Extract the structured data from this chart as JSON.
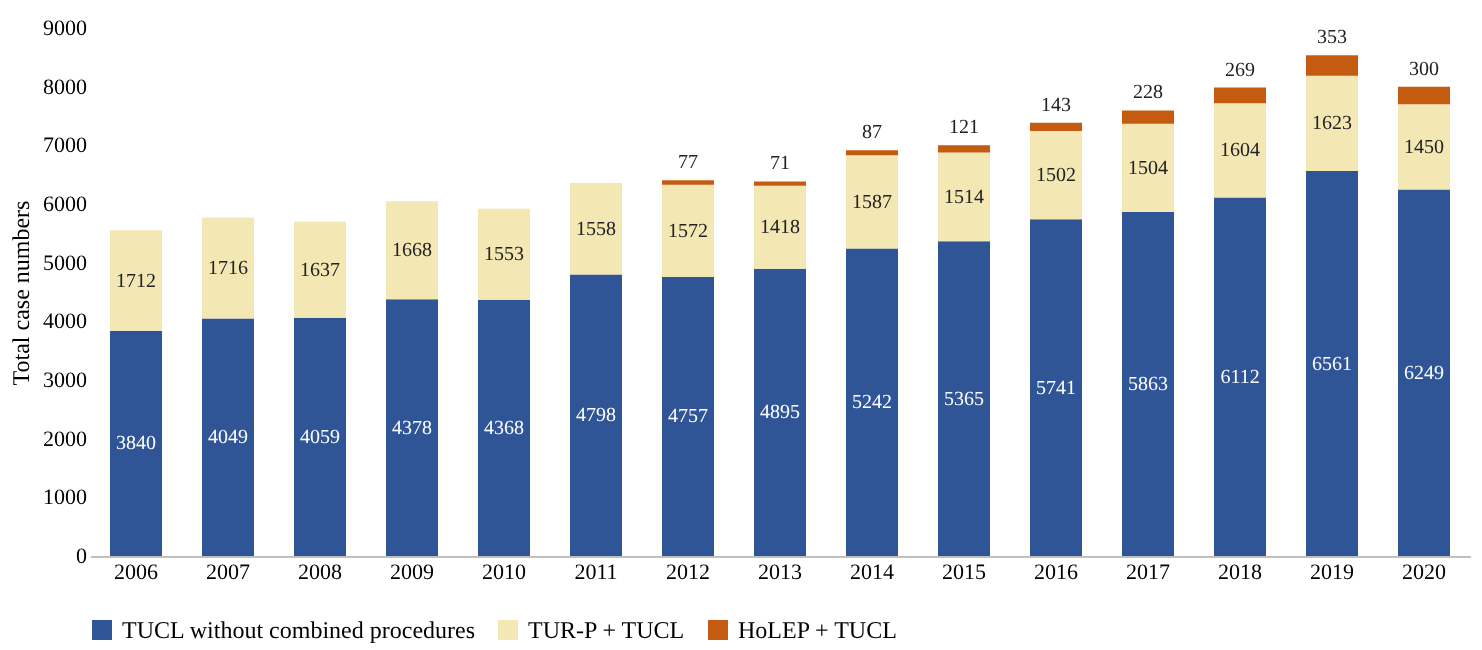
{
  "chart_data": {
    "type": "bar",
    "stacked": true,
    "ylabel": "Total case numbers",
    "categories": [
      "2006",
      "2007",
      "2008",
      "2009",
      "2010",
      "2011",
      "2012",
      "2013",
      "2014",
      "2015",
      "2016",
      "2017",
      "2018",
      "2019",
      "2020"
    ],
    "series": [
      {
        "name": "TUCL without combined procedures",
        "color": "#2f5597",
        "values": [
          3840,
          4049,
          4059,
          4378,
          4368,
          4798,
          4757,
          4895,
          5242,
          5365,
          5741,
          5863,
          6112,
          6561,
          6249
        ]
      },
      {
        "name": "TUR-P + TUCL",
        "color": "#f3e7b3",
        "values": [
          1712,
          1716,
          1637,
          1668,
          1553,
          1558,
          1572,
          1418,
          1587,
          1514,
          1502,
          1504,
          1604,
          1623,
          1450
        ]
      },
      {
        "name": "HoLEP + TUCL",
        "color": "#c55a11",
        "values": [
          null,
          null,
          null,
          null,
          null,
          null,
          77,
          71,
          87,
          121,
          143,
          228,
          269,
          353,
          300
        ]
      }
    ],
    "ylim": [
      0,
      9000
    ],
    "yticks": [
      0,
      1000,
      2000,
      3000,
      4000,
      5000,
      6000,
      7000,
      8000,
      9000
    ],
    "grid": false,
    "legend": "bottom",
    "data_labels": true
  }
}
